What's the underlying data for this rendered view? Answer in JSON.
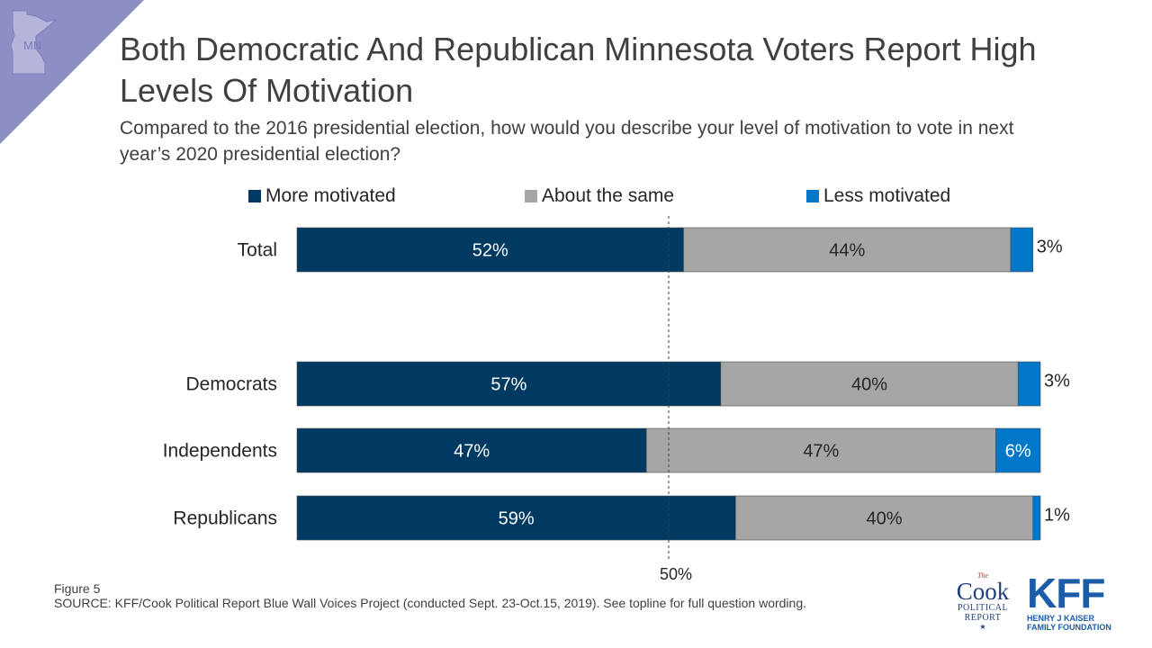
{
  "state_badge": {
    "label": "MN"
  },
  "title": "Both Democratic And Republican Minnesota Voters Report High Levels Of Motivation",
  "subtitle": "Compared to the 2016 presidential election, how would you describe your level of motivation to vote in next year’s 2020 presidential election?",
  "colors": {
    "more": "#003a63",
    "same": "#a6a6a6",
    "less": "#0077c8",
    "badge": "#8e8ec7"
  },
  "chart_data": {
    "type": "bar",
    "orientation": "horizontal",
    "stacked": true,
    "categories": [
      "Total",
      "Democrats",
      "Independents",
      "Republicans"
    ],
    "series": [
      {
        "name": "More motivated",
        "values": [
          52,
          57,
          47,
          59
        ]
      },
      {
        "name": "About the same",
        "values": [
          44,
          40,
          47,
          40
        ]
      },
      {
        "name": "Less motivated",
        "values": [
          3,
          3,
          6,
          1
        ]
      }
    ],
    "reference_line": {
      "value": 50,
      "label": "50%"
    },
    "xlim": [
      0,
      100
    ],
    "legend_position": "top",
    "grid": false
  },
  "footer": {
    "figure": "Figure 5",
    "source": "SOURCE: KFF/Cook Political Report Blue Wall Voices Project (conducted Sept. 23-Oct.15, 2019). See topline for full question wording."
  },
  "logos": {
    "cook": {
      "the": "The",
      "name": "Cook",
      "line1": "POLITICAL",
      "line2": "REPORT",
      "star": "★"
    },
    "kff": {
      "name": "KFF",
      "line1": "HENRY J KAISER",
      "line2": "FAMILY FOUNDATION"
    }
  }
}
